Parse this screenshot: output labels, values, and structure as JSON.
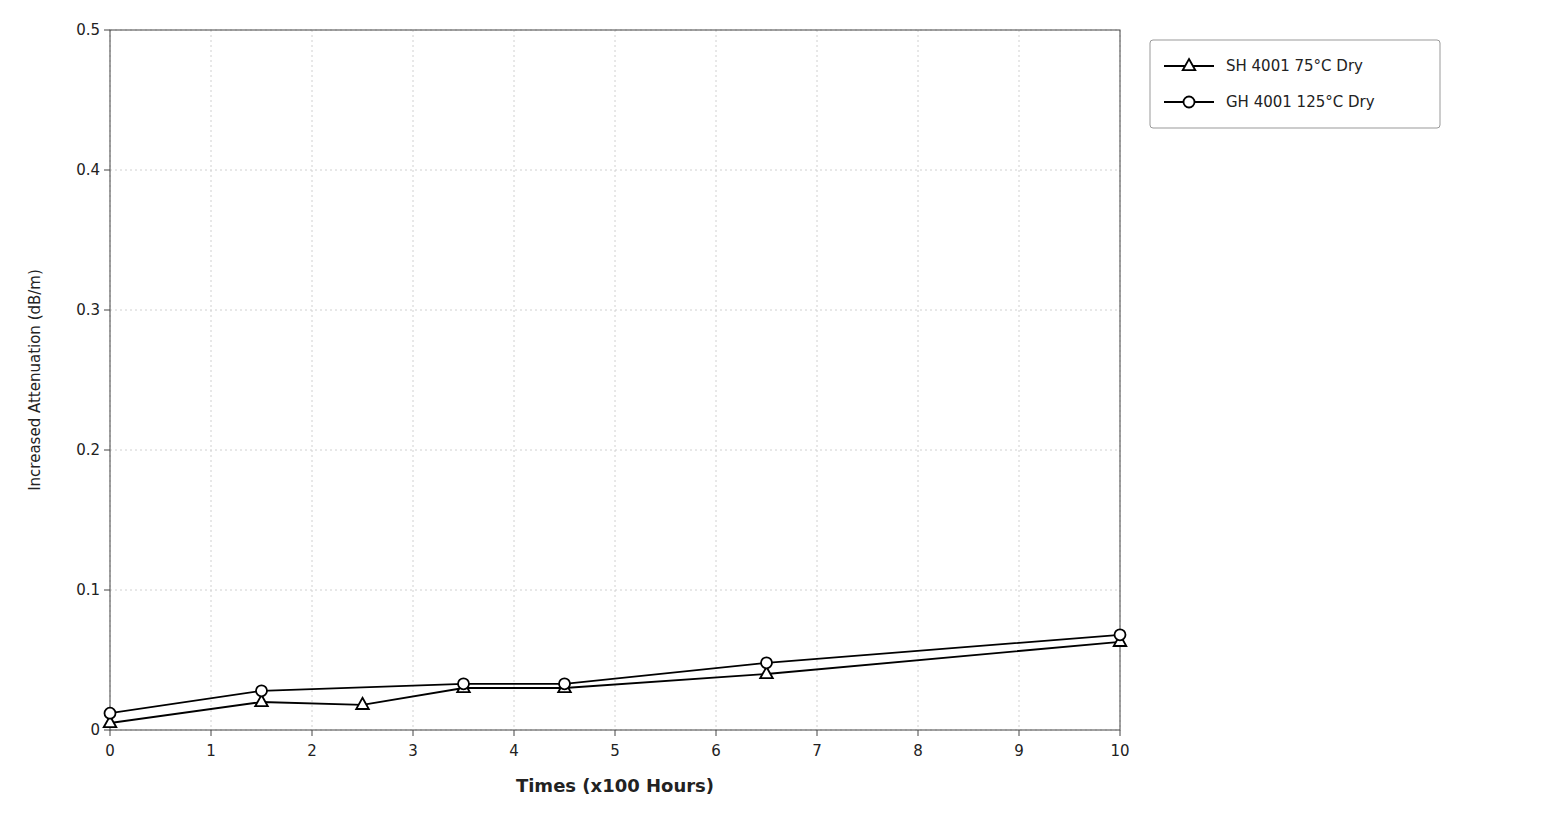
{
  "chart_data": {
    "type": "line",
    "title": "",
    "xlabel": "Times (x100 Hours)",
    "ylabel": "Increased Attenuation (dB/m)",
    "xlim": [
      0,
      10
    ],
    "ylim": [
      0,
      0.5
    ],
    "xticks": [
      0,
      1,
      2,
      3,
      4,
      5,
      6,
      7,
      8,
      9,
      10
    ],
    "yticks": [
      0,
      0.1,
      0.2,
      0.3,
      0.4,
      0.5
    ],
    "grid": true,
    "legend": "right",
    "series": [
      {
        "name": "SH 4001 75°C Dry",
        "color": "#000000",
        "marker": "triangle",
        "x": [
          0,
          1.5,
          2.5,
          3.5,
          4.5,
          6.5,
          10.0
        ],
        "values": [
          0.005,
          0.02,
          0.018,
          0.03,
          0.03,
          0.04,
          0.063
        ]
      },
      {
        "name": "GH 4001 125°C Dry",
        "color": "#000000",
        "marker": "circle",
        "x": [
          0,
          1.5,
          3.5,
          4.5,
          6.5,
          10.0
        ],
        "values": [
          0.012,
          0.028,
          0.033,
          0.033,
          0.048,
          0.068
        ]
      }
    ]
  }
}
